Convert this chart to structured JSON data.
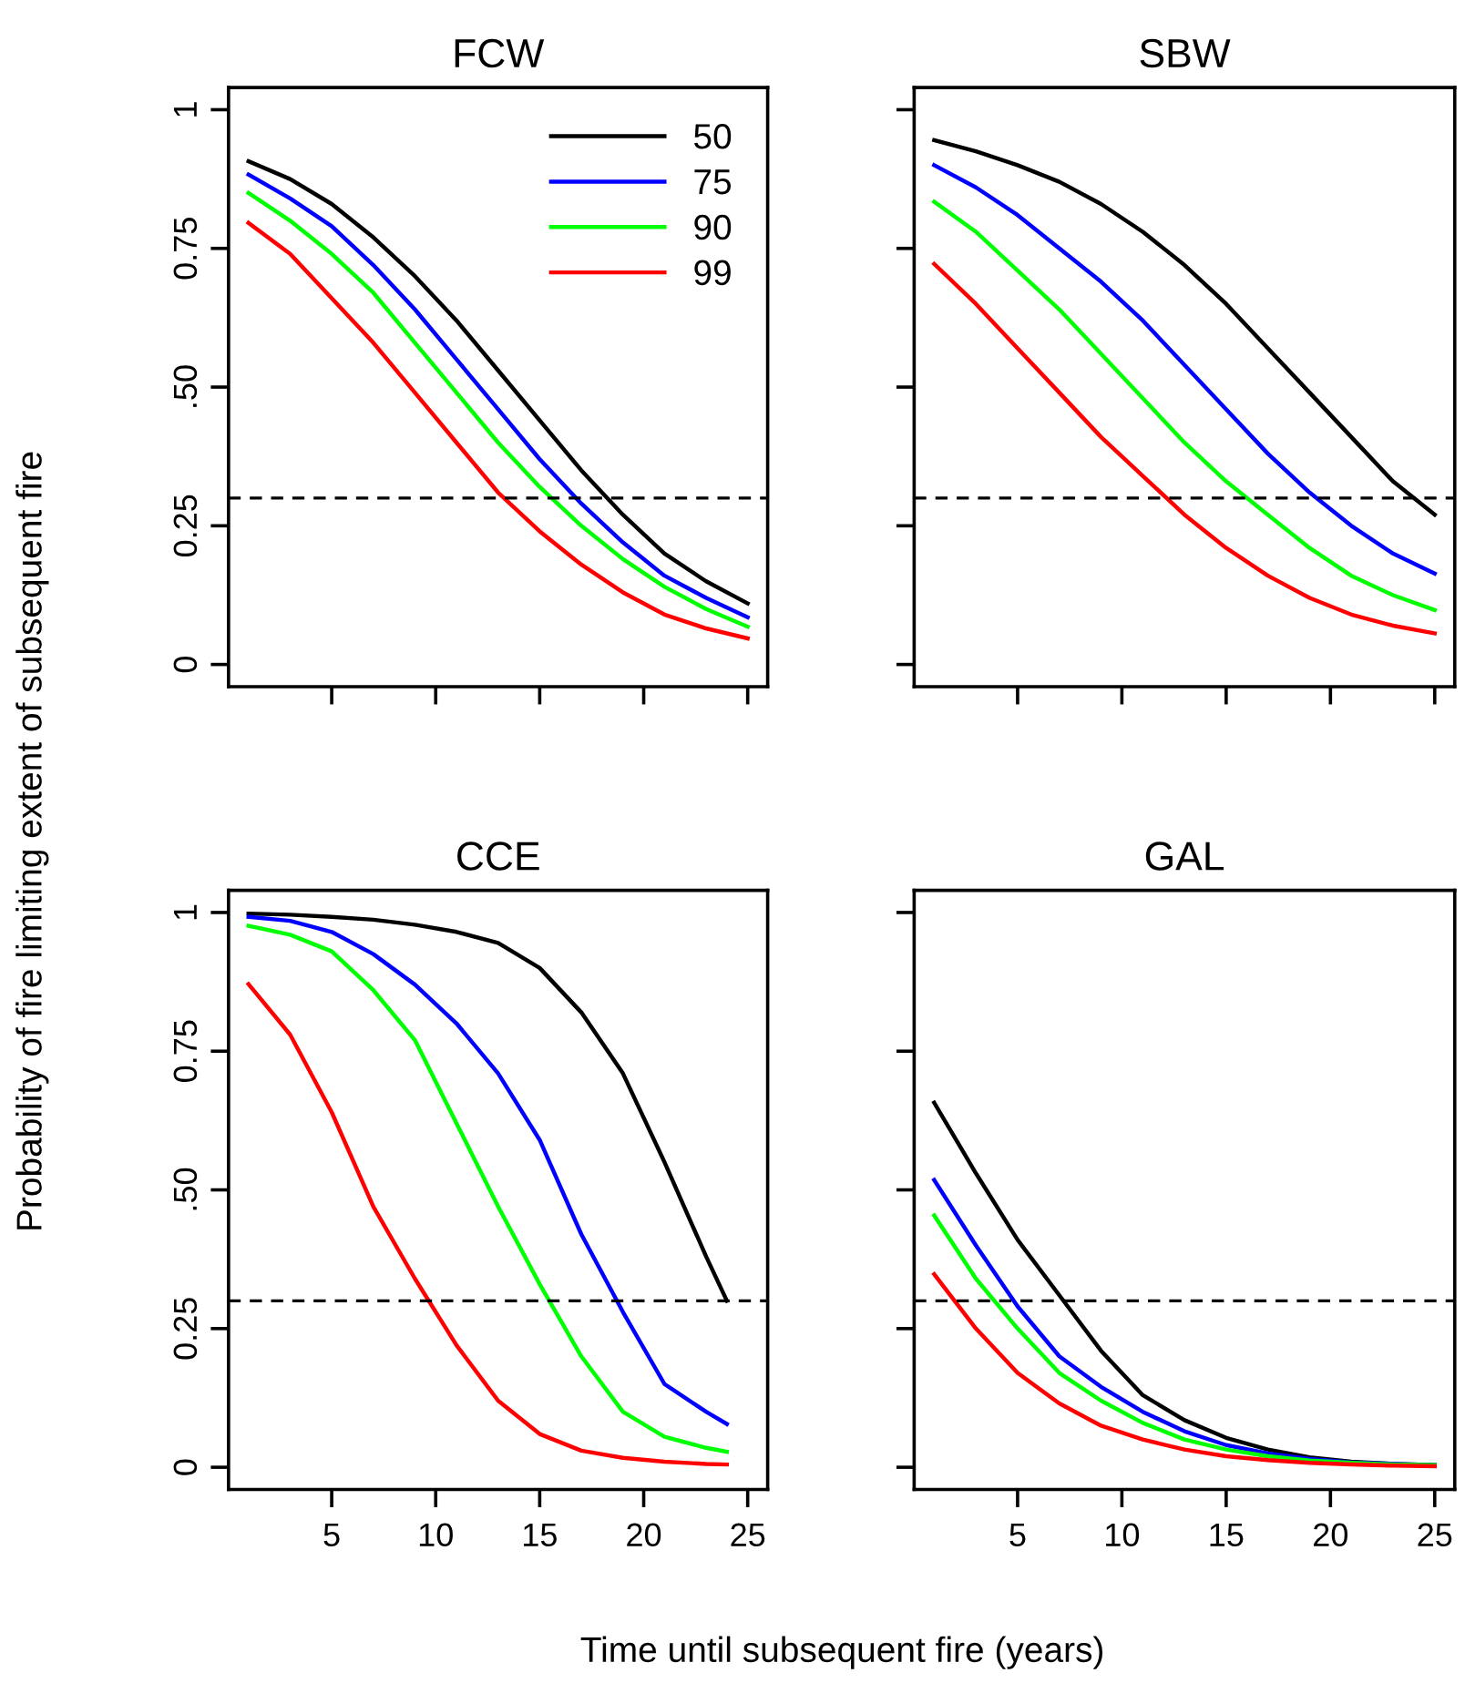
{
  "chart_data": [
    {
      "type": "line",
      "title": "FCW",
      "ylabel": "Probability of fire limiting extent of subsequent fire",
      "x": [
        1,
        3,
        5,
        7,
        9,
        11,
        13,
        15,
        17,
        19,
        21,
        23,
        25
      ],
      "xlim": [
        0.04,
        25.96
      ],
      "ylim": [
        -0.04,
        1.04
      ],
      "xticks": [
        5,
        10,
        15,
        20,
        25
      ],
      "yticks": [
        0,
        0.25,
        {
          "value": 0.5,
          "label": ".50"
        },
        0.75,
        1
      ],
      "tick_labels": "y",
      "legend": "top right",
      "line_style": "solid",
      "marker": "none",
      "grid": false,
      "ref_lines": [
        {
          "axis": "y",
          "value": 0.3,
          "label": null,
          "color": "#000000",
          "line_style": "dashed"
        }
      ],
      "series": [
        {
          "name": "50",
          "color": "#000000",
          "values": [
            0.907,
            0.875,
            0.83,
            0.77,
            0.7,
            0.62,
            0.53,
            0.44,
            0.35,
            0.27,
            0.2,
            0.15,
            0.11
          ]
        },
        {
          "name": "75",
          "color": "#0000ff",
          "values": [
            0.883,
            0.84,
            0.79,
            0.72,
            0.64,
            0.55,
            0.46,
            0.37,
            0.29,
            0.22,
            0.16,
            0.12,
            0.085
          ]
        },
        {
          "name": "90",
          "color": "#00ff00",
          "values": [
            0.85,
            0.8,
            0.74,
            0.67,
            0.58,
            0.49,
            0.4,
            0.32,
            0.25,
            0.19,
            0.14,
            0.1,
            0.068
          ]
        },
        {
          "name": "99",
          "color": "#ff0000",
          "values": [
            0.796,
            0.74,
            0.66,
            0.58,
            0.49,
            0.4,
            0.31,
            0.24,
            0.18,
            0.13,
            0.09,
            0.065,
            0.047
          ]
        }
      ]
    },
    {
      "type": "line",
      "title": "SBW",
      "x": [
        1,
        3,
        5,
        7,
        9,
        11,
        13,
        15,
        17,
        19,
        21,
        23,
        25
      ],
      "xlim": [
        0.04,
        25.96
      ],
      "ylim": [
        -0.04,
        1.04
      ],
      "xticks": [
        5,
        10,
        15,
        20,
        25
      ],
      "yticks": [
        0,
        0.25,
        0.5,
        0.75,
        1
      ],
      "tick_labels": false,
      "line_style": "solid",
      "marker": "none",
      "grid": false,
      "ref_lines": [
        {
          "axis": "y",
          "value": 0.3,
          "label": null,
          "color": "#000000",
          "line_style": "dashed"
        }
      ],
      "series": [
        {
          "color": "#000000",
          "values": [
            0.945,
            0.925,
            0.9,
            0.87,
            0.83,
            0.78,
            0.72,
            0.65,
            0.57,
            0.49,
            0.41,
            0.33,
            0.27
          ]
        },
        {
          "color": "#0000ff",
          "values": [
            0.9,
            0.86,
            0.81,
            0.75,
            0.69,
            0.62,
            0.54,
            0.46,
            0.38,
            0.31,
            0.25,
            0.2,
            0.164
          ]
        },
        {
          "color": "#00ff00",
          "values": [
            0.834,
            0.78,
            0.71,
            0.64,
            0.56,
            0.48,
            0.4,
            0.33,
            0.27,
            0.21,
            0.16,
            0.125,
            0.098
          ]
        },
        {
          "color": "#ff0000",
          "values": [
            0.722,
            0.65,
            0.57,
            0.49,
            0.41,
            0.34,
            0.27,
            0.21,
            0.16,
            0.12,
            0.09,
            0.07,
            0.056
          ]
        }
      ]
    },
    {
      "type": "line",
      "title": "CCE",
      "xlabel": "Time until subsequent fire (years)",
      "x": [
        1,
        3,
        5,
        7,
        9,
        11,
        13,
        15,
        17,
        19,
        21,
        23,
        24
      ],
      "xlim": [
        0.04,
        25.96
      ],
      "ylim": [
        -0.04,
        1.04
      ],
      "xticks": [
        5,
        10,
        15,
        20,
        25
      ],
      "yticks": [
        0,
        0.25,
        {
          "value": 0.5,
          "label": ".50"
        },
        0.75,
        1
      ],
      "line_style": "solid",
      "marker": "none",
      "grid": false,
      "ref_lines": [
        {
          "axis": "y",
          "value": 0.3,
          "label": null,
          "color": "#000000",
          "line_style": "dashed"
        }
      ],
      "series": [
        {
          "color": "#000000",
          "values": [
            0.998,
            0.996,
            0.992,
            0.987,
            0.978,
            0.965,
            0.945,
            0.9,
            0.82,
            0.71,
            0.55,
            0.38,
            0.3
          ]
        },
        {
          "color": "#0000ff",
          "values": [
            0.992,
            0.985,
            0.965,
            0.925,
            0.87,
            0.8,
            0.71,
            0.59,
            0.42,
            0.28,
            0.15,
            0.1,
            0.078
          ]
        },
        {
          "color": "#00ff00",
          "values": [
            0.976,
            0.96,
            0.93,
            0.86,
            0.77,
            0.62,
            0.47,
            0.33,
            0.2,
            0.1,
            0.055,
            0.035,
            0.028
          ]
        },
        {
          "color": "#ff0000",
          "values": [
            0.871,
            0.78,
            0.64,
            0.47,
            0.34,
            0.22,
            0.12,
            0.06,
            0.03,
            0.017,
            0.01,
            0.006,
            0.005
          ]
        }
      ]
    },
    {
      "type": "line",
      "title": "GAL",
      "x": [
        1,
        3,
        5,
        7,
        9,
        11,
        13,
        15,
        17,
        19,
        21,
        23,
        25
      ],
      "xlim": [
        0.04,
        25.96
      ],
      "ylim": [
        -0.04,
        1.04
      ],
      "xticks": [
        5,
        10,
        15,
        20,
        25
      ],
      "yticks": [
        0,
        0.25,
        0.5,
        0.75,
        1
      ],
      "tick_labels": "x",
      "line_style": "solid",
      "marker": "none",
      "grid": false,
      "ref_lines": [
        {
          "axis": "y",
          "value": 0.3,
          "label": null,
          "color": "#000000",
          "line_style": "dashed"
        }
      ],
      "series": [
        {
          "color": "#000000",
          "values": [
            0.657,
            0.53,
            0.41,
            0.31,
            0.21,
            0.13,
            0.085,
            0.053,
            0.032,
            0.018,
            0.01,
            0.006,
            0.004
          ]
        },
        {
          "color": "#0000ff",
          "values": [
            0.518,
            0.4,
            0.29,
            0.2,
            0.145,
            0.1,
            0.065,
            0.04,
            0.025,
            0.015,
            0.009,
            0.006,
            0.004
          ]
        },
        {
          "color": "#00ff00",
          "values": [
            0.454,
            0.34,
            0.25,
            0.17,
            0.12,
            0.08,
            0.05,
            0.032,
            0.02,
            0.012,
            0.008,
            0.005,
            0.004
          ]
        },
        {
          "color": "#ff0000",
          "values": [
            0.348,
            0.25,
            0.17,
            0.115,
            0.075,
            0.05,
            0.032,
            0.02,
            0.013,
            0.008,
            0.005,
            0.003,
            0.002
          ]
        }
      ]
    }
  ]
}
